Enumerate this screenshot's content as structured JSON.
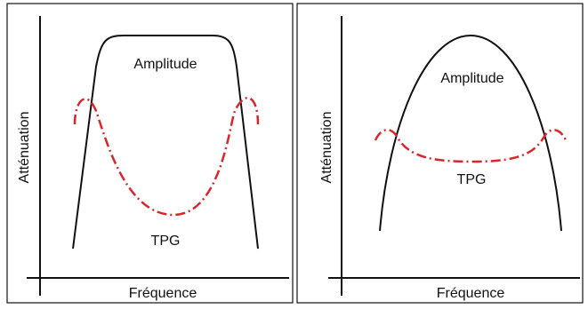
{
  "panels": [
    {
      "y_axis_label": "Atténuation",
      "x_axis_label": "Fréquence",
      "amplitude_label": "Amplitude",
      "tpg_label": "TPG"
    },
    {
      "y_axis_label": "Atténuation",
      "x_axis_label": "Fréquence",
      "amplitude_label": "Amplitude",
      "tpg_label": "TPG"
    }
  ],
  "colors": {
    "frame": "#111111",
    "axis": "#111111",
    "amplitude_curve": "#111111",
    "tpg_curve": "#d9262b",
    "background": "#ffffff"
  },
  "tpg_line_style": "dash-dot"
}
